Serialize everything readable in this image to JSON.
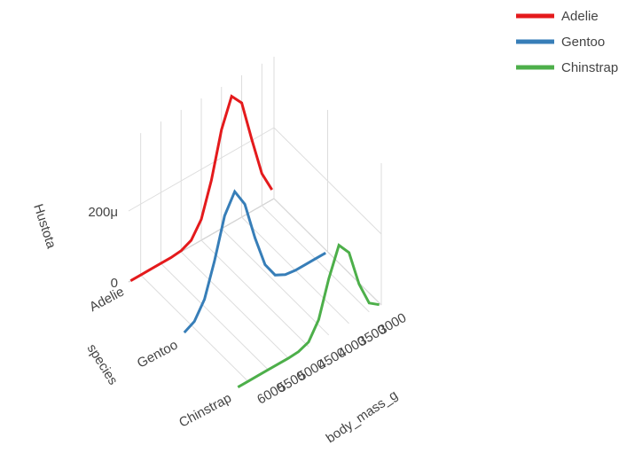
{
  "chart_data": {
    "type": "line3d",
    "x_label": "body_mass_g",
    "y_label": "species",
    "z_label": "Hustota",
    "x": [
      2750,
      3000,
      3250,
      3500,
      3750,
      4000,
      4250,
      4500,
      4750,
      5000,
      5250,
      5500,
      5750,
      6000,
      6250
    ],
    "categories": [
      "Adelie",
      "Gentoo",
      "Chinstrap"
    ],
    "series": [
      {
        "name": "Adelie",
        "color": "#e41a1c",
        "values": [
          2.8e-05,
          9e-05,
          0.000203,
          0.000322,
          0.000357,
          0.000279,
          0.000153,
          5.9e-05,
          1.6e-05,
          3e-06,
          0,
          0,
          0,
          0,
          0
        ]
      },
      {
        "name": "Gentoo",
        "color": "#377eb8",
        "values": [
          0,
          0,
          0,
          0,
          4e-06,
          1.9e-05,
          6.5e-05,
          0.000157,
          0.000268,
          0.00032,
          0.000268,
          0.000157,
          6.5e-05,
          1.9e-05,
          4e-06
        ]
      },
      {
        "name": "Chinstrap",
        "color": "#4daf4a",
        "values": [
          4e-06,
          2.5e-05,
          9.5e-05,
          0.0002,
          0.000237,
          0.000159,
          6e-05,
          1.3e-05,
          2e-06,
          0,
          0,
          0,
          0,
          0,
          0
        ]
      }
    ],
    "xlim": [
      2700,
      6300
    ],
    "xticks": [
      3000,
      3500,
      4000,
      4500,
      5000,
      5500,
      6000
    ],
    "zlim": [
      0,
      0.0004
    ],
    "zticks": [
      0,
      {
        "value": 0.0002,
        "label": "200μ"
      }
    ],
    "grid": true,
    "legend": "top-right"
  }
}
